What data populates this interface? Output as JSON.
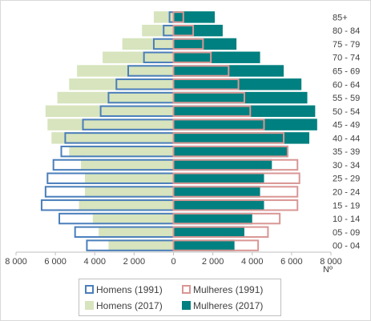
{
  "chart_data": {
    "type": "bar",
    "orientation": "horizontal",
    "layout": "population-pyramid",
    "categories": [
      "00 - 04",
      "05 - 09",
      "10 - 14",
      "15 - 19",
      "20 - 24",
      "25 - 29",
      "30 - 34",
      "35 - 39",
      "40 - 44",
      "45 - 49",
      "50 - 54",
      "55 - 59",
      "60 - 64",
      "65 - 69",
      "70 - 74",
      "75 - 79",
      "80 - 84",
      "85+"
    ],
    "series": [
      {
        "name": "Homens (2017)",
        "side": "left",
        "style": "filled",
        "color": "#d7e4bd",
        "values": [
          3300,
          3800,
          4100,
          4800,
          4500,
          4500,
          4700,
          5300,
          6200,
          6400,
          6500,
          5900,
          5300,
          4900,
          3600,
          2600,
          1600,
          1000
        ]
      },
      {
        "name": "Mulheres (2017)",
        "side": "right",
        "style": "filled",
        "color": "#008080",
        "values": [
          3100,
          3600,
          4000,
          4600,
          4400,
          4600,
          5000,
          5800,
          6900,
          7300,
          7200,
          6800,
          6500,
          5600,
          4400,
          3200,
          2500,
          2100
        ]
      },
      {
        "name": "Homens (1991)",
        "side": "left",
        "style": "outline",
        "color": "#4a7ebb",
        "values": [
          4400,
          5000,
          5800,
          6700,
          6500,
          6400,
          6100,
          5700,
          5500,
          4600,
          3700,
          3300,
          2900,
          2300,
          1500,
          1000,
          500,
          200
        ]
      },
      {
        "name": "Mulheres (1991)",
        "side": "right",
        "style": "outline",
        "color": "#d99694",
        "values": [
          4300,
          4800,
          5400,
          6300,
          6300,
          6400,
          6300,
          5800,
          5600,
          4600,
          3900,
          3600,
          3300,
          2800,
          1900,
          1500,
          1000,
          500
        ]
      }
    ],
    "x_axis": {
      "ticks": [
        -8000,
        -6000,
        -4000,
        -2000,
        0,
        2000,
        4000,
        6000,
        8000
      ],
      "tick_labels": [
        "8 000",
        "6 000",
        "4 000",
        "2 000",
        "0",
        "2 000",
        "4 000",
        "6 000",
        "8 000"
      ],
      "range": [
        -8000,
        8000
      ],
      "unit_label": "Nº"
    },
    "category_axis_position": "right",
    "legend_position": "bottom",
    "grid": false
  },
  "legend": {
    "items": [
      {
        "label": "Homens (1991)",
        "color": "#4a7ebb",
        "style": "outline"
      },
      {
        "label": "Mulheres (1991)",
        "color": "#d99694",
        "style": "outline"
      },
      {
        "label": "Homens (2017)",
        "color": "#d7e4bd",
        "style": "filled"
      },
      {
        "label": "Mulheres (2017)",
        "color": "#008080",
        "style": "filled"
      }
    ]
  }
}
